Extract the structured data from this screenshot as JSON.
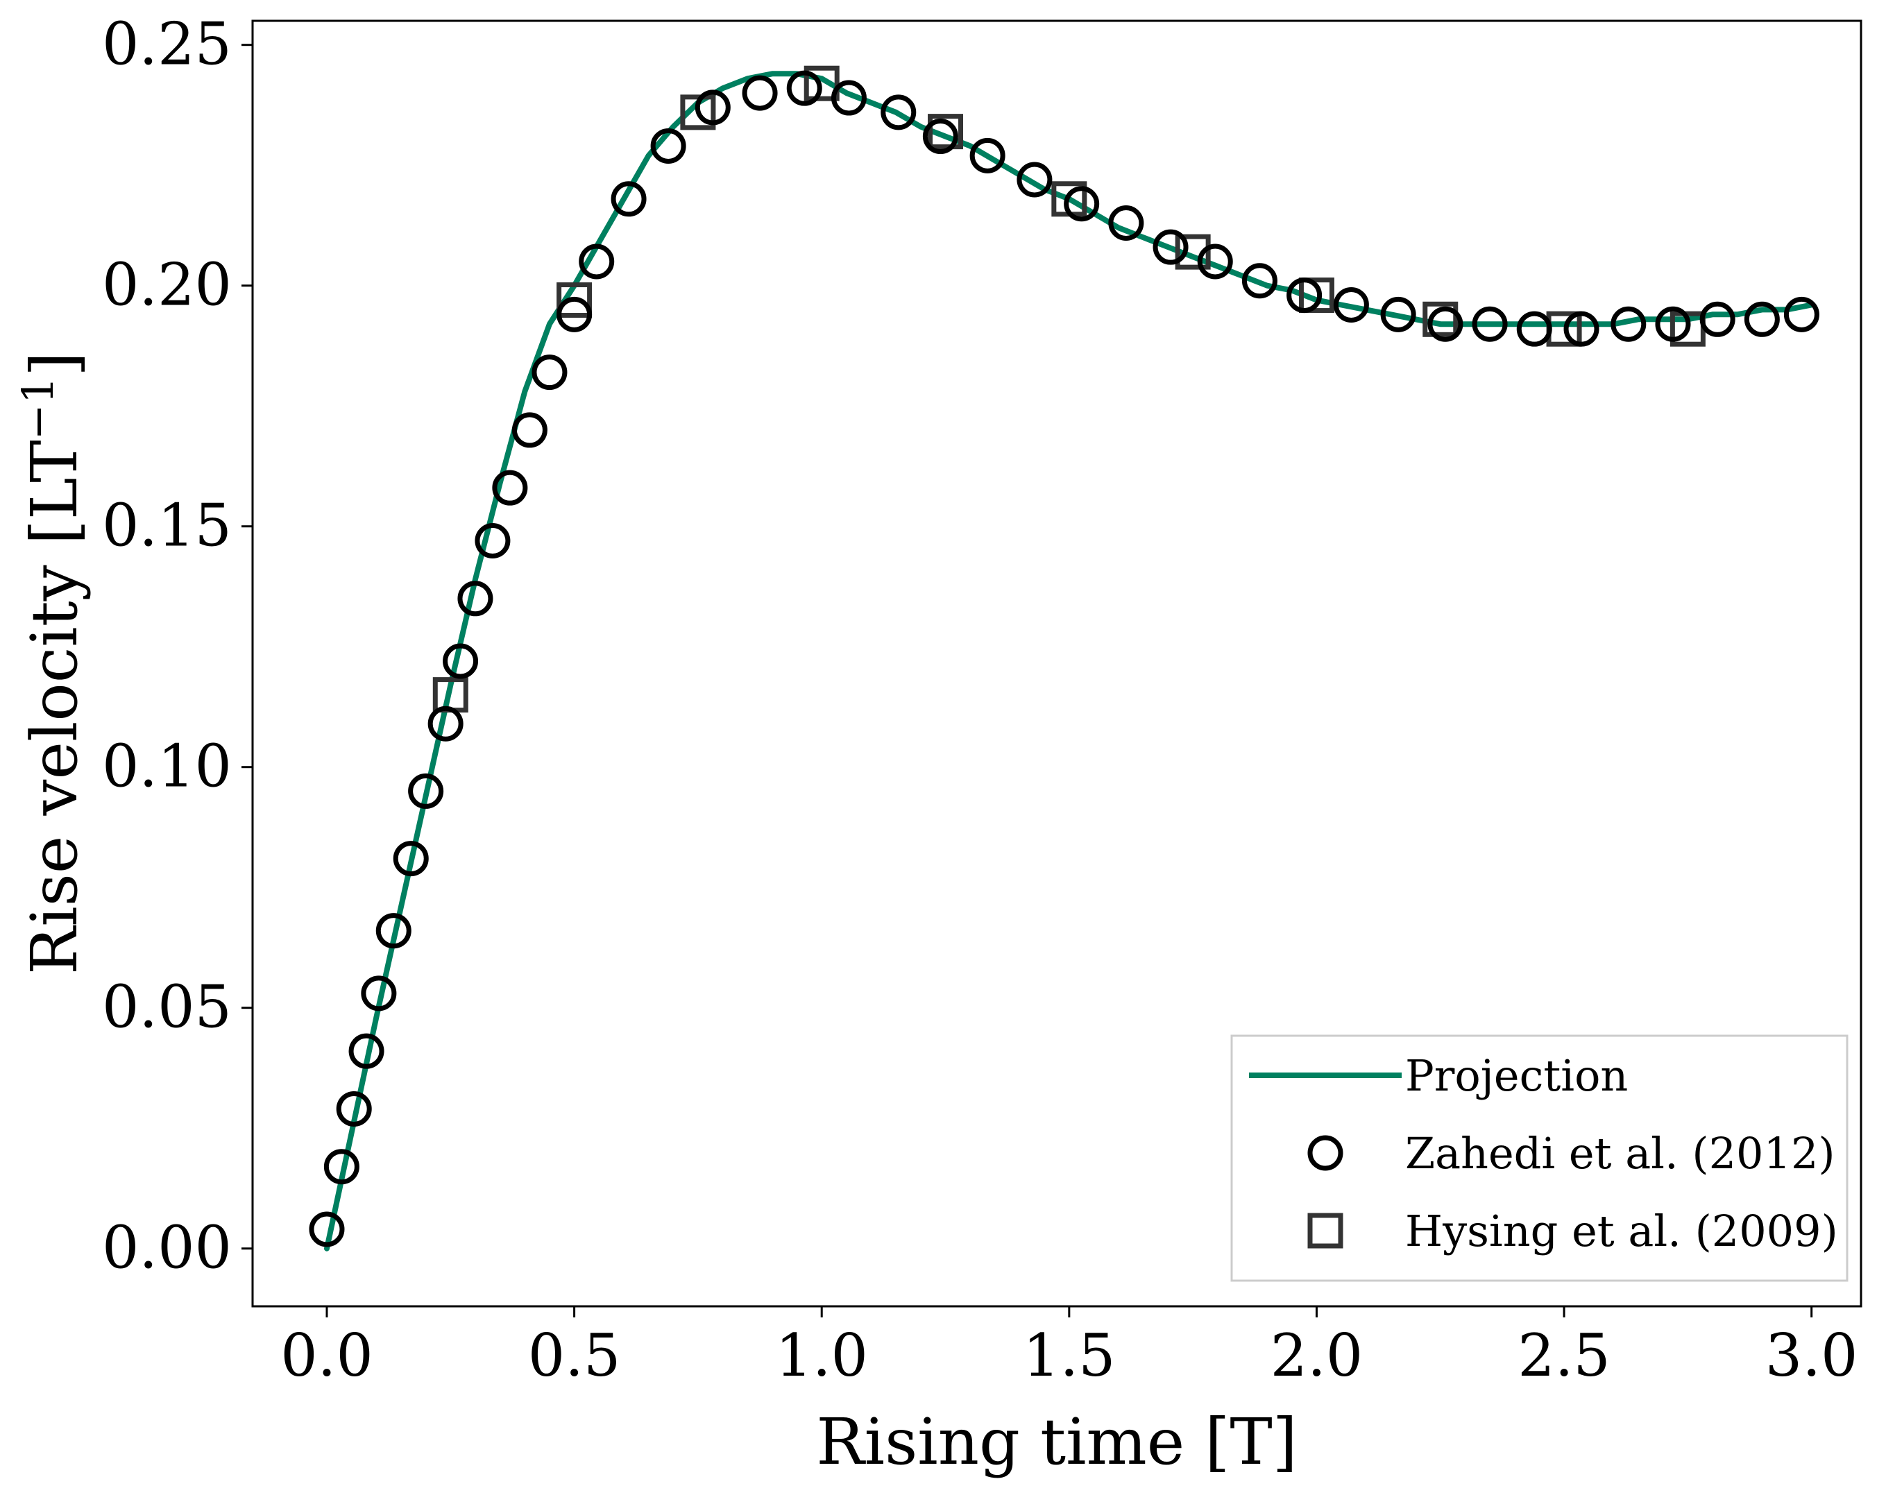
{
  "chart_data": {
    "type": "line",
    "xlabel": "Rising time [T]",
    "ylabel": "Rise velocity [LT",
    "ylabel_sup": "−1",
    "ylabel_close": "]",
    "xlim": [
      -0.15,
      3.1
    ],
    "ylim": [
      -0.012,
      0.255
    ],
    "xticks": [
      0.0,
      0.5,
      1.0,
      1.5,
      2.0,
      2.5,
      3.0
    ],
    "xtick_labels": [
      "0.0",
      "0.5",
      "1.0",
      "1.5",
      "2.0",
      "2.5",
      "3.0"
    ],
    "yticks": [
      0.0,
      0.05,
      0.1,
      0.15,
      0.2,
      0.25
    ],
    "ytick_labels": [
      "0.00",
      "0.05",
      "0.10",
      "0.15",
      "0.20",
      "0.25"
    ],
    "grid": false,
    "legend_position": "bottom-right",
    "colors": {
      "projection": "#008060",
      "zahedi": "#000000",
      "hysing": "#333333"
    },
    "series": [
      {
        "name": "Projection",
        "style": "line",
        "x": [
          0.0,
          0.05,
          0.1,
          0.15,
          0.2,
          0.25,
          0.3,
          0.35,
          0.4,
          0.45,
          0.5,
          0.55,
          0.6,
          0.65,
          0.7,
          0.75,
          0.8,
          0.85,
          0.9,
          0.95,
          1.0,
          1.05,
          1.1,
          1.15,
          1.2,
          1.25,
          1.3,
          1.35,
          1.4,
          1.45,
          1.5,
          1.55,
          1.6,
          1.65,
          1.7,
          1.75,
          1.8,
          1.85,
          1.9,
          1.95,
          2.0,
          2.05,
          2.1,
          2.15,
          2.2,
          2.25,
          2.3,
          2.35,
          2.4,
          2.45,
          2.5,
          2.55,
          2.6,
          2.65,
          2.7,
          2.75,
          2.8,
          2.85,
          2.9,
          2.95,
          3.0
        ],
        "y": [
          0.0,
          0.024,
          0.048,
          0.071,
          0.094,
          0.117,
          0.139,
          0.159,
          0.178,
          0.192,
          0.2,
          0.209,
          0.218,
          0.227,
          0.233,
          0.238,
          0.241,
          0.243,
          0.244,
          0.244,
          0.243,
          0.24,
          0.238,
          0.236,
          0.233,
          0.231,
          0.229,
          0.226,
          0.223,
          0.22,
          0.218,
          0.215,
          0.212,
          0.21,
          0.208,
          0.206,
          0.204,
          0.202,
          0.2,
          0.199,
          0.197,
          0.196,
          0.195,
          0.194,
          0.193,
          0.192,
          0.192,
          0.192,
          0.192,
          0.192,
          0.192,
          0.192,
          0.192,
          0.193,
          0.193,
          0.193,
          0.194,
          0.194,
          0.195,
          0.195,
          0.196
        ]
      },
      {
        "name": "Zahedi et al. (2012)",
        "style": "circle",
        "x": [
          0.0,
          0.03,
          0.055,
          0.08,
          0.105,
          0.135,
          0.17,
          0.2,
          0.24,
          0.27,
          0.3,
          0.335,
          0.37,
          0.41,
          0.45,
          0.5,
          0.545,
          0.61,
          0.69,
          0.78,
          0.875,
          0.965,
          1.055,
          1.155,
          1.24,
          1.335,
          1.43,
          1.525,
          1.615,
          1.705,
          1.795,
          1.885,
          1.975,
          2.07,
          2.165,
          2.26,
          2.35,
          2.44,
          2.535,
          2.63,
          2.72,
          2.81,
          2.9,
          2.98
        ],
        "y": [
          0.004,
          0.017,
          0.029,
          0.041,
          0.053,
          0.066,
          0.081,
          0.095,
          0.109,
          0.122,
          0.135,
          0.147,
          0.158,
          0.17,
          0.182,
          0.194,
          0.205,
          0.218,
          0.229,
          0.237,
          0.24,
          0.241,
          0.239,
          0.236,
          0.231,
          0.227,
          0.222,
          0.217,
          0.213,
          0.208,
          0.205,
          0.201,
          0.198,
          0.196,
          0.194,
          0.192,
          0.192,
          0.191,
          0.191,
          0.192,
          0.192,
          0.193,
          0.193,
          0.194
        ]
      },
      {
        "name": "Hysing et al. (2009)",
        "style": "square",
        "x": [
          0.25,
          0.5,
          0.75,
          1.0,
          1.25,
          1.5,
          1.75,
          2.0,
          2.25,
          2.5,
          2.75
        ],
        "y": [
          0.115,
          0.197,
          0.236,
          0.242,
          0.232,
          0.218,
          0.207,
          0.198,
          0.193,
          0.191,
          0.191
        ]
      }
    ]
  }
}
